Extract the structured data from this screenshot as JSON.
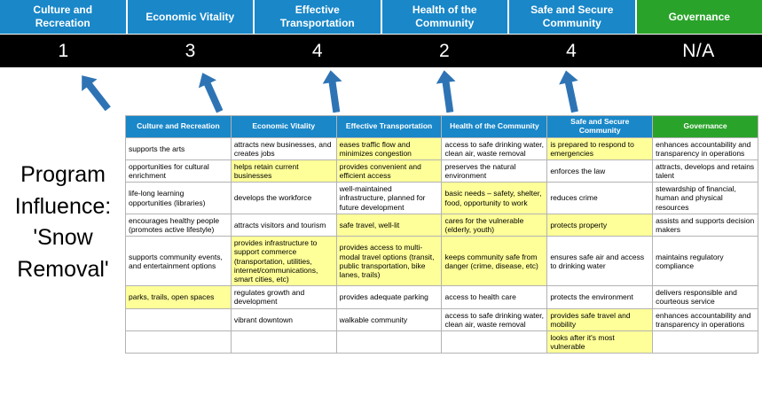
{
  "title": "Program\nInfluence:\n'Snow\nRemoval'",
  "colors": {
    "header_blue": "#1987c8",
    "header_green": "#2aa32a",
    "score_band_bg": "#000000",
    "cell_highlight": "#ffff99",
    "arrow_blue": "#2e74b5"
  },
  "scoreboard": {
    "columns": [
      {
        "label": "Culture and Recreation",
        "score": "1",
        "type": "blue"
      },
      {
        "label": "Economic Vitality",
        "score": "3",
        "type": "blue"
      },
      {
        "label": "Effective Transportation",
        "score": "4",
        "type": "blue"
      },
      {
        "label": "Health of the Community",
        "score": "2",
        "type": "blue"
      },
      {
        "label": "Safe and Secure Community",
        "score": "4",
        "type": "blue"
      },
      {
        "label": "Governance",
        "score": "N/A",
        "type": "green"
      }
    ]
  },
  "matrix": {
    "headers": [
      {
        "label": "Culture and Recreation",
        "type": "blue"
      },
      {
        "label": "Economic Vitality",
        "type": "blue"
      },
      {
        "label": "Effective Transportation",
        "type": "blue"
      },
      {
        "label": "Health of the Community",
        "type": "blue"
      },
      {
        "label": "Safe and Secure Community",
        "type": "blue"
      },
      {
        "label": "Governance",
        "type": "green"
      }
    ],
    "rows": [
      [
        {
          "text": "supports the arts",
          "highlight": false
        },
        {
          "text": "attracts new businesses, and creates jobs",
          "highlight": false
        },
        {
          "text": "eases traffic flow and minimizes congestion",
          "highlight": true
        },
        {
          "text": "access to safe drinking water, clean air, waste removal",
          "highlight": false
        },
        {
          "text": "is prepared to respond to emergencies",
          "highlight": true
        },
        {
          "text": "enhances accountability and transparency in operations",
          "highlight": false
        }
      ],
      [
        {
          "text": "opportunities for cultural enrichment",
          "highlight": false
        },
        {
          "text": "helps retain current businesses",
          "highlight": true
        },
        {
          "text": "provides convenient and efficient access",
          "highlight": true
        },
        {
          "text": "preserves the natural environment",
          "highlight": false
        },
        {
          "text": "enforces the law",
          "highlight": false
        },
        {
          "text": "attracts, develops and retains talent",
          "highlight": false
        }
      ],
      [
        {
          "text": "life-long learning opportunities (libraries)",
          "highlight": false
        },
        {
          "text": "develops the workforce",
          "highlight": false
        },
        {
          "text": "well-maintained infrastructure, planned for future development",
          "highlight": false
        },
        {
          "text": "basic needs – safety, shelter, food, opportunity to work",
          "highlight": true
        },
        {
          "text": "reduces crime",
          "highlight": false
        },
        {
          "text": "stewardship of financial, human and physical resources",
          "highlight": false
        }
      ],
      [
        {
          "text": "encourages healthy people (promotes active lifestyle)",
          "highlight": false
        },
        {
          "text": "attracts visitors and tourism",
          "highlight": false
        },
        {
          "text": "safe travel, well-lit",
          "highlight": true
        },
        {
          "text": "cares for the vulnerable (elderly, youth)",
          "highlight": true
        },
        {
          "text": "protects property",
          "highlight": true
        },
        {
          "text": "assists and supports decision makers",
          "highlight": false
        }
      ],
      [
        {
          "text": "supports community events, and entertainment options",
          "highlight": false
        },
        {
          "text": "provides infrastructure to support commerce (transportation, utilities, internet/communications, smart cities, etc)",
          "highlight": true
        },
        {
          "text": "provides access to multi-modal travel options (transit, public transportation, bike lanes, trails)",
          "highlight": true
        },
        {
          "text": "keeps community safe from danger (crime, disease, etc)",
          "highlight": true
        },
        {
          "text": "ensures safe air and access to drinking water",
          "highlight": false
        },
        {
          "text": "maintains regulatory compliance",
          "highlight": false
        }
      ],
      [
        {
          "text": "parks, trails, open spaces",
          "highlight": true
        },
        {
          "text": "regulates growth and development",
          "highlight": false
        },
        {
          "text": "provides adequate parking",
          "highlight": false
        },
        {
          "text": "access to health care",
          "highlight": false
        },
        {
          "text": "protects the environment",
          "highlight": false
        },
        {
          "text": "delivers responsible and courteous service",
          "highlight": false
        }
      ],
      [
        {
          "text": "",
          "highlight": false
        },
        {
          "text": "vibrant downtown",
          "highlight": false
        },
        {
          "text": "walkable community",
          "highlight": false
        },
        {
          "text": "access to safe drinking water, clean air, waste removal",
          "highlight": false
        },
        {
          "text": "provides safe travel and mobility",
          "highlight": true
        },
        {
          "text": "enhances accountability and transparency in operations",
          "highlight": false
        }
      ],
      [
        {
          "text": "",
          "highlight": false
        },
        {
          "text": "",
          "highlight": false
        },
        {
          "text": "",
          "highlight": false
        },
        {
          "text": "",
          "highlight": false
        },
        {
          "text": "looks after it's most vulnerable",
          "highlight": true
        },
        {
          "text": "",
          "highlight": false
        }
      ]
    ]
  }
}
